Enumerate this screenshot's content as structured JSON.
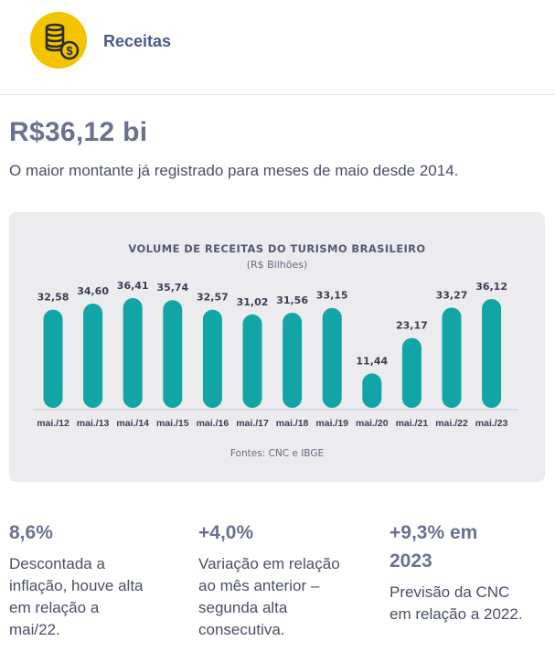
{
  "header": {
    "title": "Receitas",
    "icon": "coins-dollar-icon",
    "accent": "#f2c500"
  },
  "headline": {
    "value": "R$36,12 bi",
    "description": "O maior montante já registrado para meses de maio desde 2014."
  },
  "chart_data": {
    "type": "bar",
    "title": "VOLUME DE RECEITAS DO TURISMO BRASILEIRO",
    "subtitle": "(R$ Bilhões)",
    "categories": [
      "mai./12",
      "mai./13",
      "mai./14",
      "mai./15",
      "mai./16",
      "mai./17",
      "mai./18",
      "mai./19",
      "mai./20",
      "mai./21",
      "mai./22",
      "mai./23"
    ],
    "values": [
      32.58,
      34.6,
      36.41,
      35.74,
      32.57,
      31.02,
      31.56,
      33.15,
      11.44,
      23.17,
      33.27,
      36.12
    ],
    "value_labels": [
      "32,58",
      "34,60",
      "36,41",
      "35,74",
      "32,57",
      "31,02",
      "31,56",
      "33,15",
      "11,44",
      "23,17",
      "33,27",
      "36,12"
    ],
    "source": "Fontes: CNC e IBGE",
    "bar_color": "#12a5a5",
    "ylim": [
      0,
      40
    ]
  },
  "stats": [
    {
      "value": "8,6%",
      "description": [
        "Descontada a",
        "inflação, houve alta",
        "em relação a",
        "mai/22."
      ]
    },
    {
      "value": "+4,0%",
      "description": [
        "Variação em relação",
        "ao mês anterior –",
        "segunda alta",
        "consecutiva."
      ]
    },
    {
      "value": [
        "+9,3% em",
        "2023"
      ],
      "description": [
        "Previsão da CNC",
        "em relação a 2022."
      ]
    }
  ]
}
